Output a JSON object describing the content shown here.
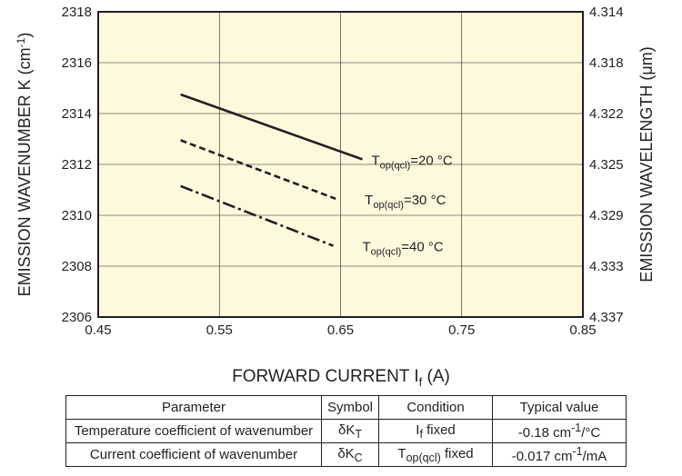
{
  "chart_data": {
    "type": "line",
    "xlabel_prefix": "FORWARD CURRENT I",
    "xlabel_sub": "f",
    "xlabel_suffix": " (A)",
    "ylabel_left": "EMISSION WAVENUMBER K (cm",
    "ylabel_left_sup": "-1",
    "ylabel_left_end": ")",
    "ylabel_right": "EMISSION WAVELENGTH (μm)",
    "xlim": [
      0.45,
      0.85
    ],
    "ylim": [
      2306,
      2318
    ],
    "x_ticks": [
      "0.45",
      "0.55",
      "0.65",
      "0.75",
      "0.85"
    ],
    "y_ticks": [
      "2306",
      "2308",
      "2310",
      "2312",
      "2314",
      "2316",
      "2318"
    ],
    "y2_ticks": [
      "4.337",
      "4.333",
      "4.329",
      "4.325",
      "4.322",
      "4.318",
      "4.314"
    ],
    "grid": true,
    "background": "#fdf9dd",
    "series": [
      {
        "name": "T op(qcl)=20 °C",
        "label_main": "T",
        "label_sub": "op(qcl)",
        "label_rest": "=20 °C",
        "style": "solid",
        "x": [
          0.518,
          0.668
        ],
        "y": [
          2314.75,
          2312.2
        ]
      },
      {
        "name": "T op(qcl)=30 °C",
        "label_main": "T",
        "label_sub": "op(qcl)",
        "label_rest": "=30 °C",
        "style": "dashed",
        "x": [
          0.518,
          0.646
        ],
        "y": [
          2312.95,
          2310.65
        ]
      },
      {
        "name": "T op(qcl)=40 °C",
        "label_main": "T",
        "label_sub": "op(qcl)",
        "label_rest": "=40 °C",
        "style": "dashdot",
        "x": [
          0.518,
          0.644
        ],
        "y": [
          2311.15,
          2308.8
        ]
      }
    ]
  },
  "table": {
    "headers": [
      "Parameter",
      "Symbol",
      "Condition",
      "Typical value"
    ],
    "rows": [
      {
        "param": "Temperature coefficient of wavenumber",
        "symbol_main": "δK",
        "symbol_sub": "T",
        "cond_main": "I",
        "cond_sub": "f",
        "cond_rest": " fixed",
        "value_main": "-0.18 cm",
        "value_sup": "-1",
        "value_rest": "/°C"
      },
      {
        "param": "Current coefficient of wavenumber",
        "symbol_main": "δK",
        "symbol_sub": "C",
        "cond_main": "T",
        "cond_sub": "op(qcl)",
        "cond_rest": " fixed",
        "value_main": "-0.017 cm",
        "value_sup": "-1",
        "value_rest": "/mA"
      }
    ]
  }
}
